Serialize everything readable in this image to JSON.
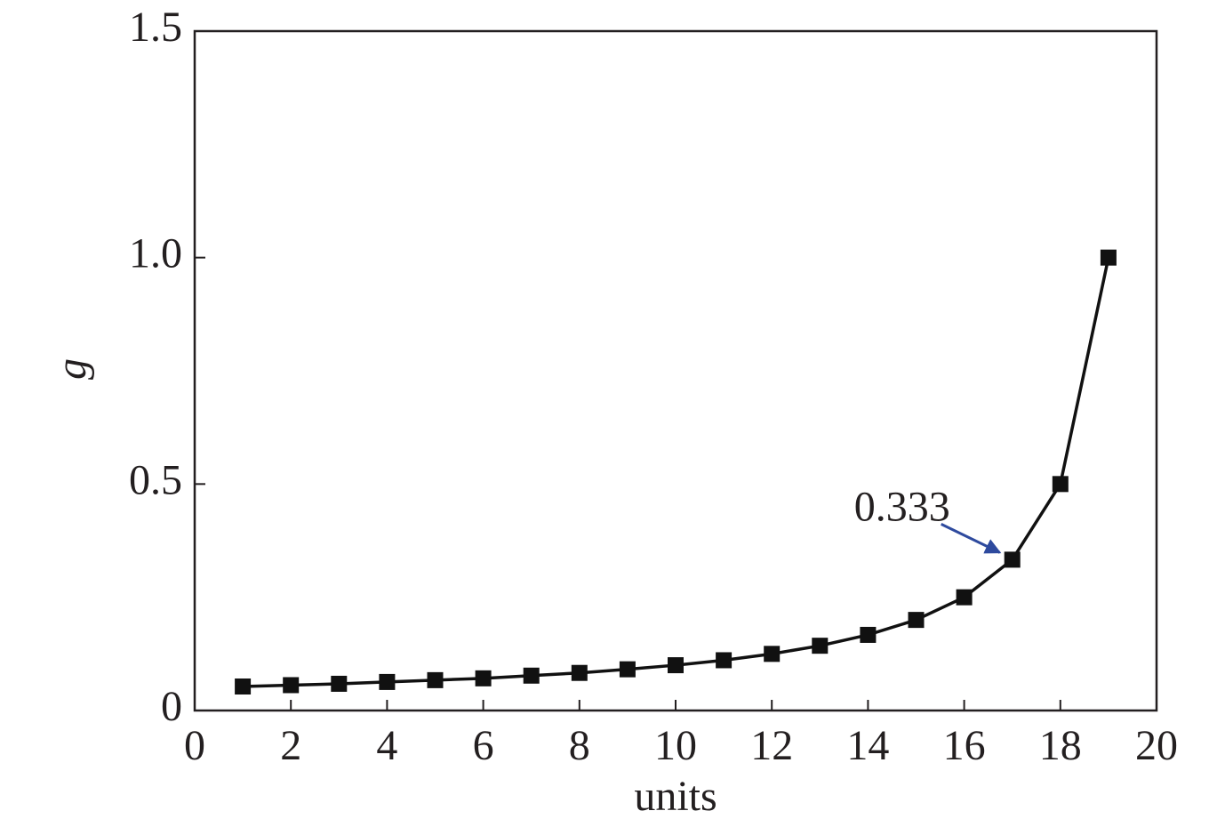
{
  "chart_data": {
    "type": "line",
    "x_label": "units",
    "y_label": "g",
    "x": [
      1,
      2,
      3,
      4,
      5,
      6,
      7,
      8,
      9,
      10,
      11,
      12,
      13,
      14,
      15,
      16,
      17,
      18,
      19
    ],
    "series": [
      {
        "color": "#111111",
        "values": [
          0.053,
          0.056,
          0.059,
          0.063,
          0.067,
          0.071,
          0.077,
          0.083,
          0.091,
          0.1,
          0.111,
          0.125,
          0.143,
          0.167,
          0.2,
          0.25,
          0.333,
          0.5,
          1.0
        ]
      }
    ],
    "annotation": {
      "text": "0.333",
      "point_index": 16,
      "arrow_color": "#2e4a9e"
    },
    "xlim": [
      0,
      20
    ],
    "xticks": [
      0,
      2,
      4,
      6,
      8,
      10,
      12,
      14,
      16,
      18,
      20
    ],
    "ylim": [
      0,
      1.5
    ],
    "yticks": [
      0,
      0.5,
      {
        "value": 1,
        "label": "1.0"
      },
      1.5
    ]
  }
}
